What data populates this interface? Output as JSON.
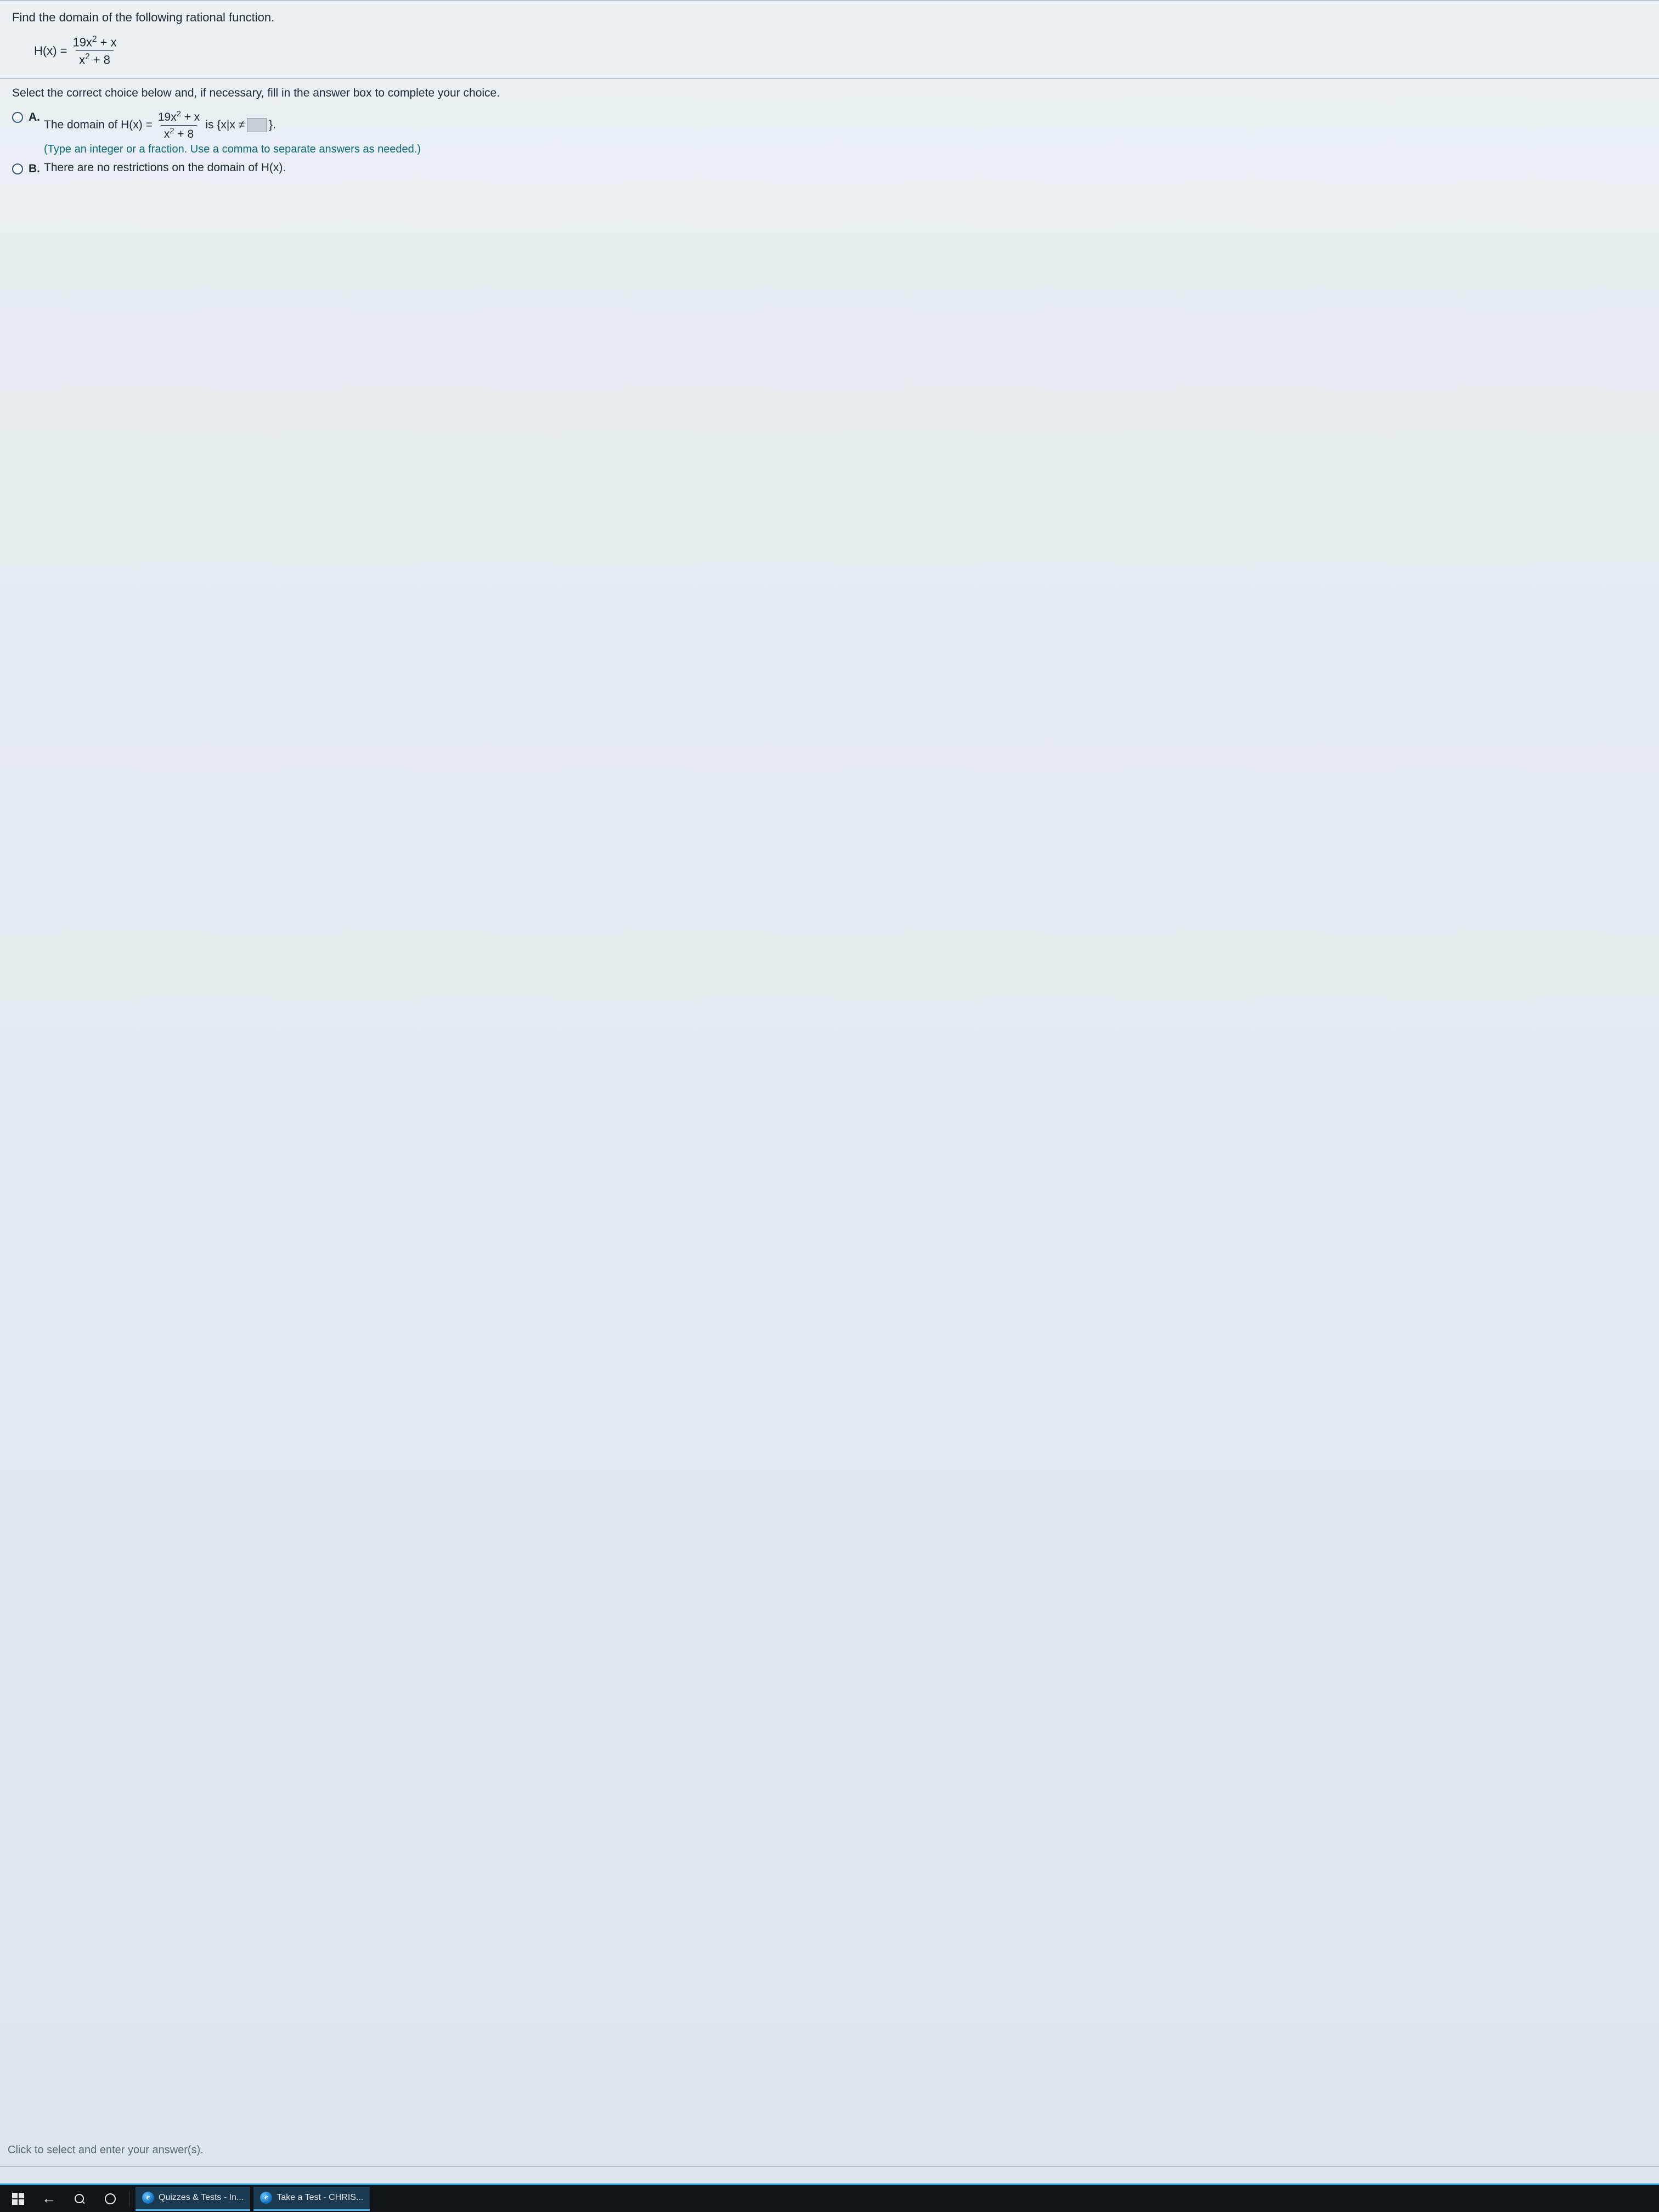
{
  "question": {
    "prompt": "Find the domain of the following rational function.",
    "function_lhs": "H(x) =",
    "numerator_coef": "19x",
    "numerator_exp": "2",
    "numerator_rest": " + x",
    "denominator_var": "x",
    "denominator_exp": "2",
    "denominator_rest": " + 8"
  },
  "instruction": "Select the correct choice below and, if necessary, fill in the answer box to complete your choice.",
  "choices": {
    "a": {
      "label": "A.",
      "line_prefix": "The domain of H(x) =",
      "line_mid": " is {x|x ≠ ",
      "line_suffix": "}.",
      "hint": "(Type an integer or a fraction. Use a comma to separate answers as needed.)"
    },
    "b": {
      "label": "B.",
      "text": "There are no restrictions on the domain of H(x)."
    }
  },
  "footer_prompt": "Click to select and enter your answer(s).",
  "taskbar": {
    "task1": "Quizzes & Tests - In...",
    "task2": "Take a Test - CHRIS..."
  },
  "colors": {
    "hint": "#0a6a7a",
    "taskbar_accent": "#2aa4e0"
  }
}
